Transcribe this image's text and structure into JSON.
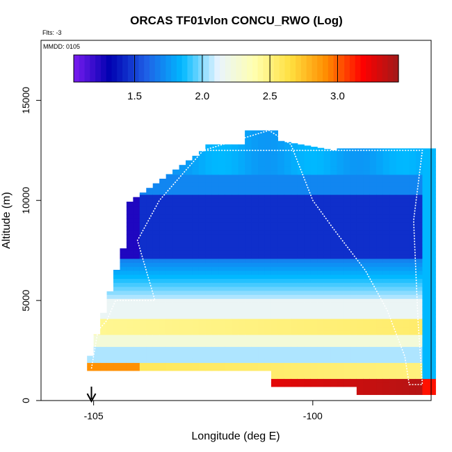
{
  "chart_data": {
    "type": "heatmap",
    "title": "ORCAS TF01vlon CONCU_RWO (Log)",
    "subtitle_flts": "Flts: -3",
    "annotation_mmdd": "MMDD: 0105",
    "xlabel": "Longitude (deg E)",
    "ylabel": "Altitude (m)",
    "xlim": [
      -106.2,
      -97.3
    ],
    "ylim": [
      0,
      18000
    ],
    "xticks": [
      -105,
      -100
    ],
    "xtick_labels": [
      "-105",
      "-100"
    ],
    "yticks": [
      0,
      5000,
      10000,
      15000
    ],
    "ytick_labels": [
      "0",
      "5000",
      "10000",
      "15000"
    ],
    "colorbar": {
      "range": [
        1.05,
        3.45
      ],
      "ticks": [
        1.5,
        2.0,
        2.5,
        3.0
      ],
      "tick_labels": [
        "1.5",
        "2.0",
        "2.5",
        "3.0"
      ],
      "colors": [
        "#7a1cf0",
        "#0000b0",
        "#1f5fe6",
        "#00b8ff",
        "#e8f4ff",
        "#ffffb0",
        "#ffe040",
        "#ff8c00",
        "#ff0000",
        "#a01a1a"
      ]
    },
    "marker": {
      "longitude": -105.05,
      "label": "takeoff arrow"
    },
    "grid": false,
    "legend": "colorbar top"
  }
}
